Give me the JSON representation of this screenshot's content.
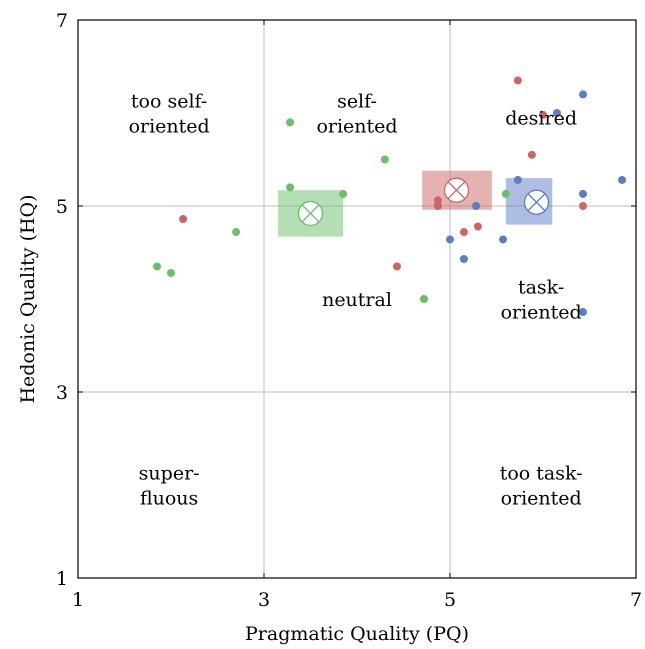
{
  "chart_data": {
    "type": "scatter",
    "xlabel": "Pragmatic Quality (PQ)",
    "ylabel": "Hedonic Quality (HQ)",
    "xlim": [
      1,
      7
    ],
    "ylim": [
      1,
      7
    ],
    "x_ticks": [
      "1",
      "3",
      "5",
      "7"
    ],
    "y_ticks": [
      "1",
      "3",
      "5",
      "7"
    ],
    "grid_at": [
      3.0,
      5.0
    ],
    "colors": {
      "green": "#6abf69",
      "red": "#cc6666",
      "blue": "#5b7ec6"
    },
    "regions": [
      {
        "lines": [
          "too self-",
          "oriented"
        ],
        "x": 1.98,
        "y": 6.0
      },
      {
        "lines": [
          "self-",
          "oriented"
        ],
        "x": 4.0,
        "y": 6.0
      },
      {
        "lines": [
          "desired"
        ],
        "x": 5.98,
        "y": 5.95
      },
      {
        "lines": [
          "neutral"
        ],
        "x": 4.0,
        "y": 4.0
      },
      {
        "lines": [
          "task-",
          "oriented"
        ],
        "x": 5.98,
        "y": 4.0
      },
      {
        "lines": [
          "super-",
          "fluous"
        ],
        "x": 1.98,
        "y": 2.0
      },
      {
        "lines": [
          "too task-",
          "oriented"
        ],
        "x": 5.98,
        "y": 2.0
      }
    ],
    "series": [
      {
        "color": "green",
        "points": [
          [
            1.85,
            4.35
          ],
          [
            2.0,
            4.28
          ],
          [
            2.7,
            4.72
          ],
          [
            3.28,
            5.9
          ],
          [
            3.28,
            5.2
          ],
          [
            3.42,
            4.93
          ],
          [
            3.85,
            5.13
          ],
          [
            4.3,
            5.5
          ],
          [
            4.72,
            4.0
          ],
          [
            5.6,
            5.13
          ]
        ],
        "mean": [
          3.5,
          4.92
        ],
        "box": {
          "x": [
            3.15,
            3.85
          ],
          "y": [
            4.67,
            5.17
          ]
        }
      },
      {
        "color": "red",
        "points": [
          [
            2.13,
            4.86
          ],
          [
            4.43,
            4.35
          ],
          [
            4.87,
            5.06
          ],
          [
            4.87,
            5.0
          ],
          [
            5.15,
            4.72
          ],
          [
            5.3,
            4.78
          ],
          [
            5.73,
            6.35
          ],
          [
            5.88,
            5.55
          ],
          [
            6.0,
            5.98
          ],
          [
            6.43,
            5.0
          ]
        ],
        "mean": [
          5.07,
          5.17
        ],
        "box": {
          "x": [
            4.7,
            5.45
          ],
          "y": [
            4.96,
            5.38
          ]
        }
      },
      {
        "color": "blue",
        "points": [
          [
            5.0,
            4.64
          ],
          [
            5.15,
            4.43
          ],
          [
            5.28,
            5.0
          ],
          [
            5.57,
            4.64
          ],
          [
            5.73,
            5.28
          ],
          [
            6.15,
            6.0
          ],
          [
            6.43,
            6.2
          ],
          [
            6.43,
            5.13
          ],
          [
            6.43,
            3.86
          ],
          [
            6.85,
            5.28
          ]
        ],
        "mean": [
          5.93,
          5.04
        ],
        "box": {
          "x": [
            5.6,
            6.1
          ],
          "y": [
            4.8,
            5.3
          ]
        }
      }
    ]
  }
}
